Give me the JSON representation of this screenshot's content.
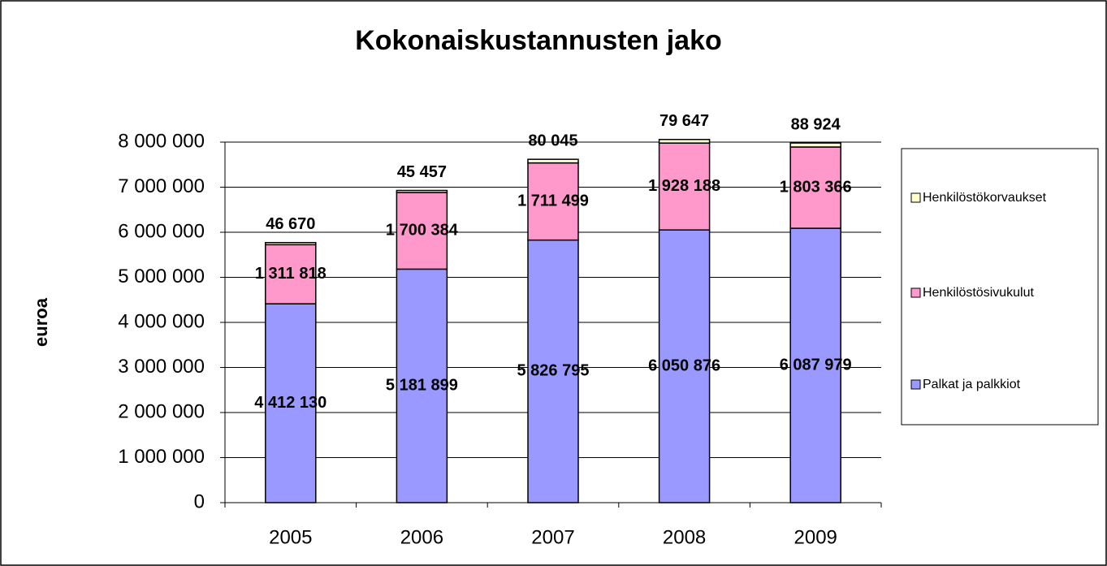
{
  "chart_data": {
    "type": "stacked_bar",
    "title": "Kokonaiskustannusten jako",
    "y_label": "euroa",
    "categories": [
      "2005",
      "2006",
      "2007",
      "2008",
      "2009"
    ],
    "series": [
      {
        "name": "Palkat ja palkkiot",
        "color": "#9999ff",
        "values": [
          4412130,
          5181899,
          5826795,
          6050876,
          6087979
        ],
        "value_labels": [
          "4 412 130",
          "5 181 899",
          "5 826 795",
          "6 050 876",
          "6 087 979"
        ]
      },
      {
        "name": "Henkilöstösivukulut",
        "color": "#ff99cc",
        "values": [
          1311818,
          1700384,
          1711499,
          1928188,
          1803366
        ],
        "value_labels": [
          "1 311 818",
          "1 700 384",
          "1 711 499",
          "1 928 188",
          "1 803 366"
        ]
      },
      {
        "name": "Henkilöstökorvaukset",
        "color": "#ffffcc",
        "values": [
          46670,
          45457,
          80045,
          79647,
          88924
        ],
        "value_labels": [
          "46 670",
          "45 457",
          "80 045",
          "79 647",
          "88 924"
        ]
      }
    ],
    "ylim": [
      0,
      8000000
    ],
    "yticks": [
      0,
      {
        "value": 1000000,
        "label": "1 000 000"
      },
      {
        "value": 2000000,
        "label": "2 000 000"
      },
      {
        "value": 3000000,
        "label": "3 000 000"
      },
      {
        "value": 4000000,
        "label": "4 000 000"
      },
      {
        "value": 5000000,
        "label": "5 000 000"
      },
      {
        "value": 6000000,
        "label": "6 000 000"
      },
      {
        "value": 7000000,
        "label": "7 000 000"
      },
      {
        "value": 8000000,
        "label": "8 000 000"
      }
    ],
    "grid": true,
    "legend": "right"
  }
}
